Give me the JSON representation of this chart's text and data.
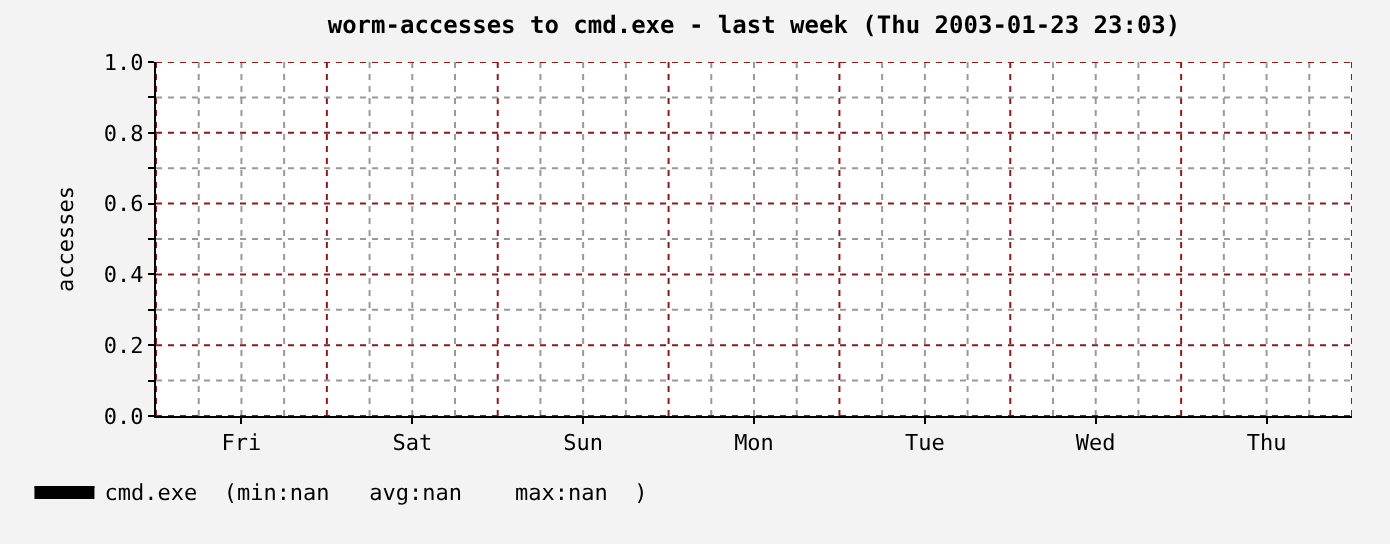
{
  "chart_data": {
    "type": "area",
    "title": "worm-accesses to cmd.exe - last week (Thu 2003-01-23 23:03)",
    "ylabel": "accesses",
    "categories": [
      "Fri",
      "Sat",
      "Sun",
      "Mon",
      "Tue",
      "Wed",
      "Thu"
    ],
    "ylim": [
      0,
      1
    ],
    "yticks": [
      {
        "value": 0,
        "label": "0.0"
      },
      {
        "value": 0.1,
        "label": null
      },
      {
        "value": 0.2,
        "label": "0.2"
      },
      {
        "value": 0.3,
        "label": null
      },
      {
        "value": 0.4,
        "label": "0.4"
      },
      {
        "value": 0.5,
        "label": null
      },
      {
        "value": 0.6,
        "label": "0.6"
      },
      {
        "value": 0.7,
        "label": null
      },
      {
        "value": 0.8,
        "label": "0.8"
      },
      {
        "value": 0.9,
        "label": null
      },
      {
        "value": 1,
        "label": "1.0"
      }
    ],
    "series": [
      {
        "name": "cmd.exe  (min:nan   avg:nan    max:nan  )",
        "color": "#000000",
        "values": [
          null,
          null,
          null,
          null,
          null,
          null,
          null
        ]
      }
    ],
    "grid": true,
    "legend": "bottom left"
  }
}
